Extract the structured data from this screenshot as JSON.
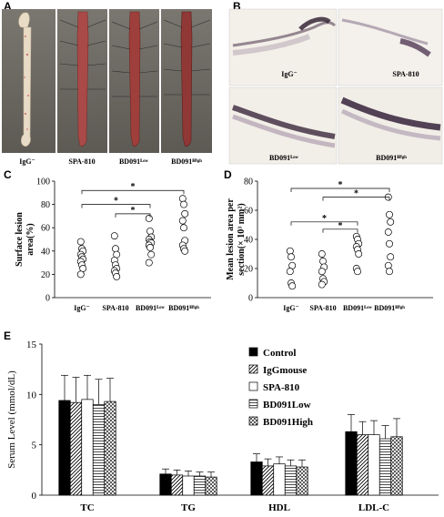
{
  "panels": {
    "a": {
      "letter": "A",
      "labels": [
        "IgG⁻",
        "SPA-810",
        "BD091ᴸᵒʷ",
        "BD091ᴴⁱᵍʰ"
      ]
    },
    "b": {
      "letter": "B",
      "labels": [
        "IgG⁻",
        "SPA-810",
        "BD091ᴸᵒʷ",
        "BD091ᴴⁱᵍʰ"
      ]
    },
    "c": {
      "letter": "C"
    },
    "d": {
      "letter": "D"
    },
    "e": {
      "letter": "E"
    }
  },
  "chart_data": [
    {
      "id": "C",
      "type": "scatter",
      "ylabel": "Surface lesion area(%)",
      "ylim": [
        0,
        100
      ],
      "yticks": [
        0,
        20,
        40,
        60,
        80,
        100
      ],
      "categories": [
        "IgG⁻",
        "SPA-810",
        "BD091ᴸᵒʷ",
        "BD091ᴴⁱᵍʰ"
      ],
      "points": [
        [
          48,
          42,
          40,
          37,
          35,
          33,
          31,
          28,
          25,
          20
        ],
        [
          53,
          42,
          37,
          32,
          28,
          25,
          23,
          21,
          18
        ],
        [
          68,
          57,
          52,
          50,
          48,
          47,
          45,
          43,
          37,
          30
        ],
        [
          85,
          80,
          72,
          66,
          60,
          49,
          45,
          42,
          40
        ]
      ],
      "significance": [
        "*",
        "*",
        "*"
      ],
      "grid": false
    },
    {
      "id": "D",
      "type": "scatter",
      "ylabel": "Mean lesion area per section(× 10³ mm²)",
      "ylim": [
        0,
        80
      ],
      "yticks": [
        0,
        20,
        40,
        60,
        80
      ],
      "categories": [
        "IgG⁻",
        "SPA-810",
        "BD091ᴸᵒʷ",
        "BD091ᴴⁱᵍʰ"
      ],
      "points": [
        [
          32,
          28,
          22,
          18,
          10,
          8
        ],
        [
          30,
          25,
          21,
          18,
          13,
          11,
          9
        ],
        [
          42,
          40,
          37,
          35,
          33,
          30,
          20,
          18
        ],
        [
          69,
          57,
          52,
          45,
          37,
          28,
          22,
          18
        ]
      ],
      "significance": [
        "*",
        "*",
        "*",
        "*"
      ],
      "grid": false
    },
    {
      "id": "E",
      "type": "bar",
      "ylabel": "Serum Level (mmol/dL)",
      "ylim": [
        0,
        15
      ],
      "yticks": [
        0,
        5,
        10,
        15
      ],
      "categories": [
        "TC",
        "TG",
        "HDL",
        "LDL-C"
      ],
      "series": [
        {
          "name": "Control",
          "values": [
            9.4,
            2.1,
            3.3,
            6.3
          ],
          "errors": [
            2.5,
            0.5,
            0.8,
            1.7
          ]
        },
        {
          "name": "IgGmouse",
          "values": [
            9.2,
            2.0,
            2.9,
            6.0
          ],
          "errors": [
            2.5,
            0.5,
            0.7,
            1.3
          ]
        },
        {
          "name": "SPA-810",
          "values": [
            9.5,
            1.9,
            3.1,
            6.0
          ],
          "errors": [
            2.4,
            0.5,
            0.7,
            1.4
          ]
        },
        {
          "name": "BD091Low",
          "values": [
            9.0,
            1.9,
            2.9,
            5.6
          ],
          "errors": [
            2.5,
            0.4,
            0.6,
            1.3
          ]
        },
        {
          "name": "BD091High",
          "values": [
            9.3,
            1.8,
            2.8,
            5.8
          ],
          "errors": [
            2.3,
            0.5,
            0.7,
            1.8
          ]
        }
      ],
      "patterns": [
        "solid",
        "diag",
        "empty",
        "hlines",
        "cross"
      ],
      "legend": "top-right",
      "grid": false
    }
  ]
}
